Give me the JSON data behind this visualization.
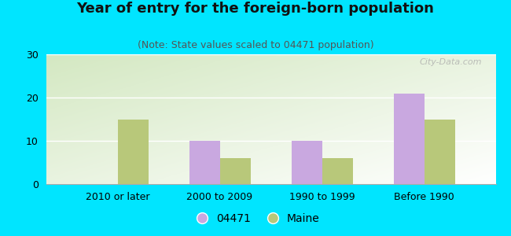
{
  "categories": [
    "2010 or later",
    "2000 to 2009",
    "1990 to 1999",
    "Before 1990"
  ],
  "series": {
    "04471": [
      0,
      10,
      10,
      21
    ],
    "Maine": [
      15,
      6,
      6,
      15
    ]
  },
  "bar_colors": {
    "04471": "#c9a8e0",
    "Maine": "#b8c87a"
  },
  "title": "Year of entry for the foreign-born population",
  "subtitle": "(Note: State values scaled to 04471 population)",
  "ylim": [
    0,
    30
  ],
  "yticks": [
    0,
    10,
    20,
    30
  ],
  "background_color": "#00e5ff",
  "plot_bg_color": "#e8f0dc",
  "title_fontsize": 13,
  "subtitle_fontsize": 9,
  "tick_fontsize": 9,
  "legend_fontsize": 10,
  "bar_width": 0.3,
  "watermark": "City-Data.com"
}
